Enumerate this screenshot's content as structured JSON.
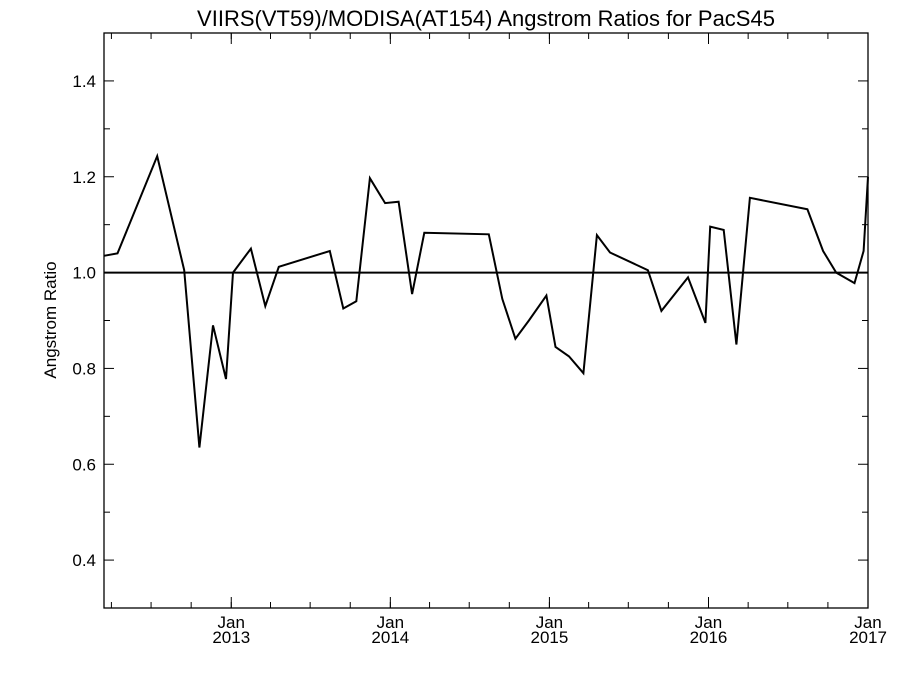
{
  "chart_data": {
    "type": "line",
    "title": "VIIRS(VT59)/MODISA(AT154)  Angstrom Ratios for PacS45",
    "xlabel": "",
    "ylabel": "Angstrom Ratio",
    "ylim": [
      0.3,
      1.5
    ],
    "xlim": [
      "2012-03-15",
      "2017-01-01"
    ],
    "y_ticks": [
      {
        "value": 0.4,
        "label": "0.4"
      },
      {
        "value": 0.6,
        "label": "0.6"
      },
      {
        "value": 0.8,
        "label": "0.8"
      },
      {
        "value": 1.0,
        "label": "1.0"
      },
      {
        "value": 1.2,
        "label": "1.2"
      },
      {
        "value": 1.4,
        "label": "1.4"
      }
    ],
    "x_ticks": [
      {
        "date": "2013-01-01",
        "month": "Jan",
        "year": "2013"
      },
      {
        "date": "2014-01-01",
        "month": "Jan",
        "year": "2014"
      },
      {
        "date": "2015-01-01",
        "month": "Jan",
        "year": "2015"
      },
      {
        "date": "2016-01-01",
        "month": "Jan",
        "year": "2016"
      },
      {
        "date": "2017-01-01",
        "month": "Jan",
        "year": "2017"
      }
    ],
    "reference_line": 1.0,
    "grid": false,
    "series": [
      {
        "color": "#000000",
        "x": [
          "2012-03-15",
          "2012-04-15",
          "2012-07-15",
          "2012-09-15",
          "2012-10-20",
          "2012-11-20",
          "2012-12-20",
          "2013-01-05",
          "2013-02-15",
          "2013-03-20",
          "2013-04-20",
          "2013-08-15",
          "2013-09-15",
          "2013-10-15",
          "2013-11-15",
          "2013-12-20",
          "2014-01-20",
          "2014-02-20",
          "2014-03-20",
          "2014-08-15",
          "2014-09-15",
          "2014-10-15",
          "2014-11-15",
          "2014-12-25",
          "2015-01-15",
          "2015-02-15",
          "2015-03-20",
          "2015-04-20",
          "2015-05-20",
          "2015-08-15",
          "2015-09-15",
          "2015-11-15",
          "2015-12-25",
          "2016-01-05",
          "2016-02-05",
          "2016-03-05",
          "2016-04-05",
          "2016-08-15",
          "2016-09-20",
          "2016-10-20",
          "2016-12-01",
          "2016-12-22",
          "2017-01-01"
        ],
        "values": [
          1.035,
          1.04,
          1.243,
          1.005,
          0.635,
          0.89,
          0.778,
          1.0,
          1.05,
          0.93,
          1.012,
          1.045,
          0.925,
          0.94,
          1.197,
          1.145,
          1.148,
          0.955,
          1.083,
          1.08,
          0.945,
          0.862,
          0.9,
          0.952,
          0.845,
          0.825,
          0.79,
          1.078,
          1.042,
          1.005,
          0.92,
          0.99,
          0.895,
          1.096,
          1.089,
          0.85,
          1.156,
          1.132,
          1.045,
          1.0,
          0.978,
          1.045,
          1.2
        ]
      }
    ]
  }
}
